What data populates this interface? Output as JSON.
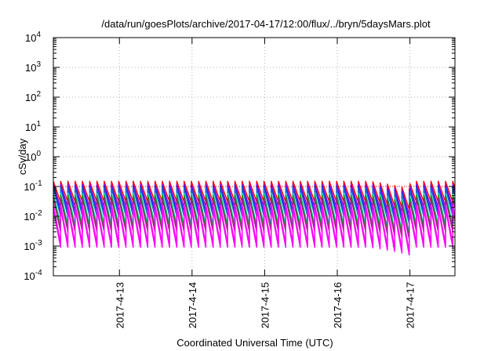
{
  "chart_data": {
    "type": "line",
    "title": "/data/run/goesPlots/archive/2017-04-17/12:00/flux/../bryn/5daysMars.plot",
    "xlabel": "Coordinated Universal Time (UTC)",
    "ylabel": "cSv/day",
    "yscale": "log",
    "ylim": [
      0.0001,
      10000
    ],
    "xlim": [
      -0.91,
      4.62
    ],
    "x_ticks": [
      "2017-4-13",
      "2017-4-14",
      "2017-4-15",
      "2017-4-16",
      "2017-4-17"
    ],
    "y_ticks": [
      {
        "base": "10",
        "exp": "-4"
      },
      {
        "base": "10",
        "exp": "-3"
      },
      {
        "base": "10",
        "exp": "-2"
      },
      {
        "base": "10",
        "exp": "-1"
      },
      {
        "base": "10",
        "exp": "0"
      },
      {
        "base": "10",
        "exp": "1"
      },
      {
        "base": "10",
        "exp": "2"
      },
      {
        "base": "10",
        "exp": "3"
      },
      {
        "base": "10",
        "exp": "4"
      }
    ],
    "grid": true,
    "reference_line": {
      "y": 0.1,
      "color": "#ff0000",
      "style": "dotted"
    },
    "cycle_days": 0.1,
    "series": [
      {
        "color": "#ff0000",
        "peak": 0.15,
        "trough": 0.03
      },
      {
        "color": "#9400d3",
        "peak": 0.12,
        "trough": 0.02
      },
      {
        "color": "#1a1aff",
        "peak": 0.1,
        "trough": 0.014
      },
      {
        "color": "#2060d0",
        "peak": 0.09,
        "trough": 0.01
      },
      {
        "color": "#00c8c8",
        "peak": 0.06,
        "trough": 0.005
      },
      {
        "color": "#00a000",
        "peak": 0.05,
        "trough": 0.004
      },
      {
        "color": "#a02080",
        "peak": 0.04,
        "trough": 0.003
      },
      {
        "color": "#ff00ff",
        "peak": 0.025,
        "trough": 0.0012
      },
      {
        "color": "#ff00ff",
        "peak": 0.018,
        "trough": 0.0009
      }
    ],
    "dip": {
      "start": 3.45,
      "end": 4.0,
      "factor": 0.55
    }
  }
}
